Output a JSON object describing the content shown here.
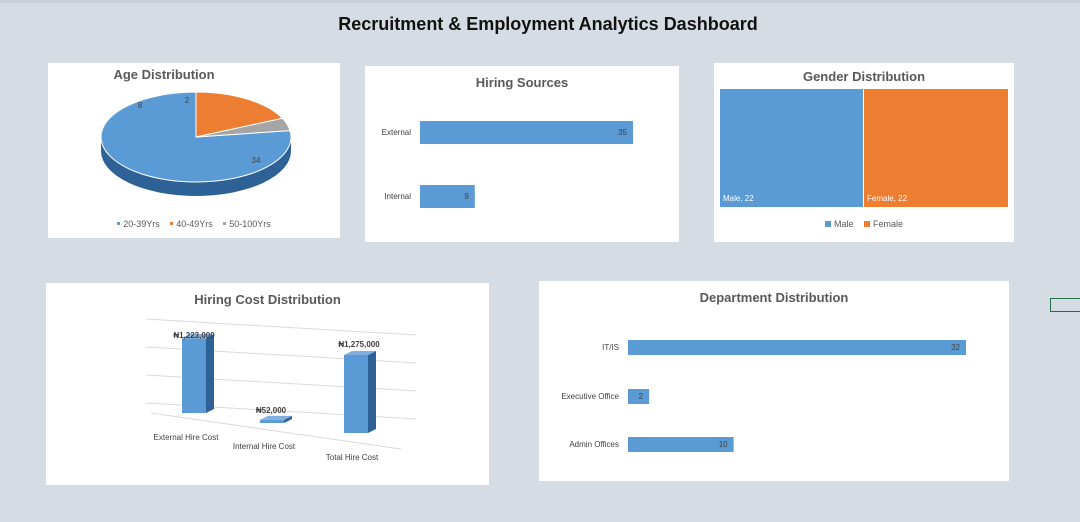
{
  "dashboard": {
    "title": "Recruitment & Employment Analytics Dashboard"
  },
  "colors": {
    "blue": "#5b9bd5",
    "orange": "#ed7d31",
    "gray": "#a5a5a5",
    "bg": "#d6dce4"
  },
  "chart_data": [
    {
      "id": "age",
      "type": "pie",
      "title": "Age Distribution",
      "categories": [
        "20-39Yrs",
        "40-49Yrs",
        "50-100Yrs"
      ],
      "values": [
        34,
        8,
        2
      ],
      "data_labels": [
        "34",
        "8",
        "2"
      ],
      "legend_position": "bottom"
    },
    {
      "id": "sources",
      "type": "bar",
      "orientation": "horizontal",
      "title": "Hiring Sources",
      "categories": [
        "External",
        "Internal"
      ],
      "values": [
        35,
        9
      ],
      "data_labels": [
        "35",
        "9"
      ]
    },
    {
      "id": "gender",
      "type": "treemap",
      "title": "Gender Distribution",
      "categories": [
        "Male",
        "Female"
      ],
      "values": [
        22,
        22
      ],
      "data_labels": [
        "Male, 22",
        "Female, 22"
      ],
      "legend": [
        "Male",
        "Female"
      ],
      "legend_position": "bottom"
    },
    {
      "id": "cost",
      "type": "bar",
      "orientation": "vertical-3d",
      "title": "Hiring Cost Distribution",
      "categories": [
        "External Hire Cost",
        "Internal Hire Cost",
        "Total Hire Cost"
      ],
      "values": [
        1223000,
        52000,
        1275000
      ],
      "data_labels": [
        "₦1,223,000",
        "₦52,000",
        "₦1,275,000"
      ]
    },
    {
      "id": "dept",
      "type": "bar",
      "orientation": "horizontal",
      "title": "Department Distribution",
      "categories": [
        "IT/IS",
        "Executive Office",
        "Admin Offices"
      ],
      "values": [
        32,
        2,
        10
      ],
      "data_labels": [
        "32",
        "2",
        "10"
      ]
    }
  ]
}
